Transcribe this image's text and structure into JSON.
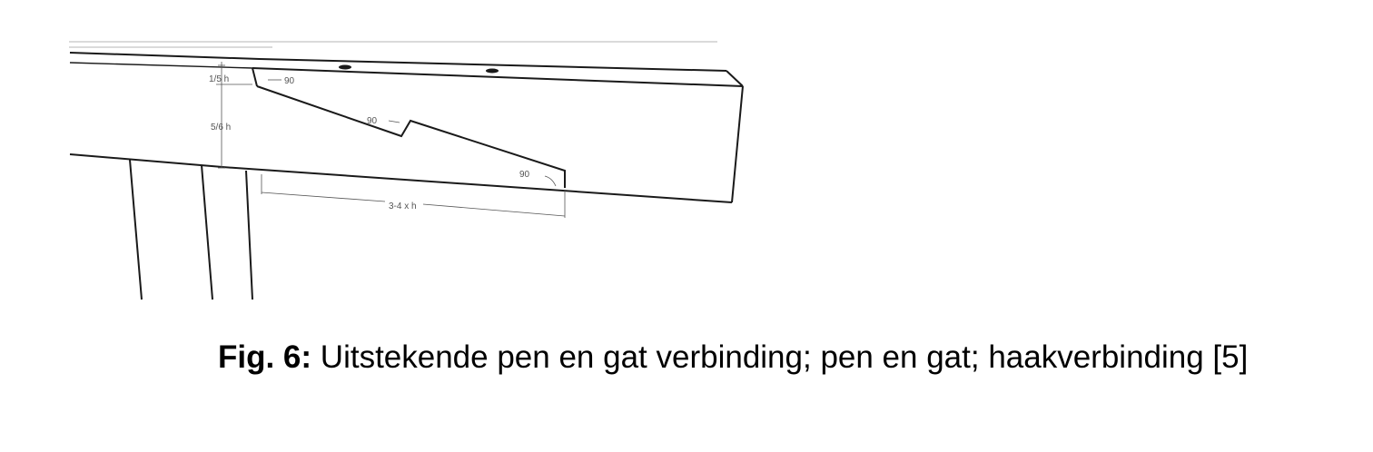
{
  "figure": {
    "dimensions": {
      "top_fraction": "1/5 h",
      "middle_fraction": "5/6 h",
      "length": "3-4 x h"
    },
    "angles": {
      "a1": "90",
      "a2": "90",
      "a3": "90"
    }
  },
  "caption": {
    "label": "Fig. 6:",
    "text": " Uitstekende pen en gat verbinding; pen en gat; haakverbinding [5]"
  }
}
